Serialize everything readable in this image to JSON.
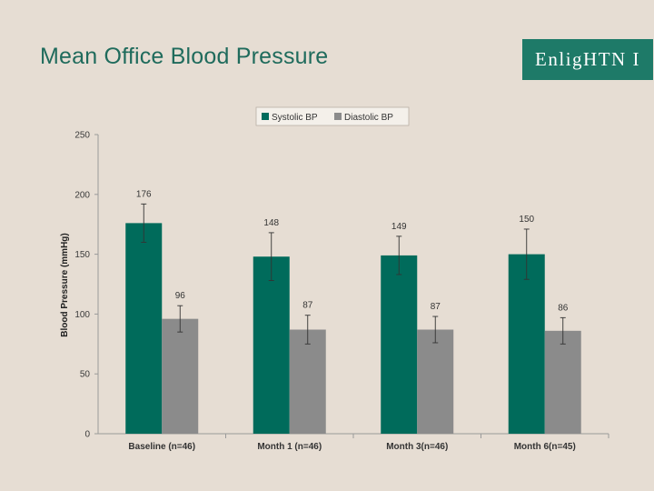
{
  "slide": {
    "title": "Mean Office Blood Pressure",
    "logo_text": "EnligHTN I"
  },
  "colors": {
    "systolic": "#006b5b",
    "diastolic": "#8b8b8b",
    "background": "#e6ddd3",
    "title": "#1f6b5c",
    "logo_bg": "#1e7a68"
  },
  "chart_data": {
    "type": "bar",
    "title": "",
    "xlabel": "",
    "ylabel": "Blood Pressure (mmHg)",
    "ylim": [
      0,
      250
    ],
    "yticks": [
      0,
      50,
      100,
      150,
      200,
      250
    ],
    "categories": [
      "Baseline (n=46)",
      "Month 1 (n=46)",
      "Month 3(n=46)",
      "Month 6(n=45)"
    ],
    "series": [
      {
        "name": "Systolic BP",
        "values": [
          176,
          148,
          149,
          150
        ],
        "error": [
          16,
          20,
          16,
          21
        ],
        "labels": [
          "176",
          "148",
          "149",
          "150"
        ]
      },
      {
        "name": "Diastolic BP",
        "values": [
          96,
          87,
          87,
          86
        ],
        "error": [
          11,
          12,
          11,
          11
        ],
        "labels": [
          "96",
          "87",
          "87",
          "86"
        ]
      }
    ],
    "legend_position": "top",
    "grid": false
  }
}
